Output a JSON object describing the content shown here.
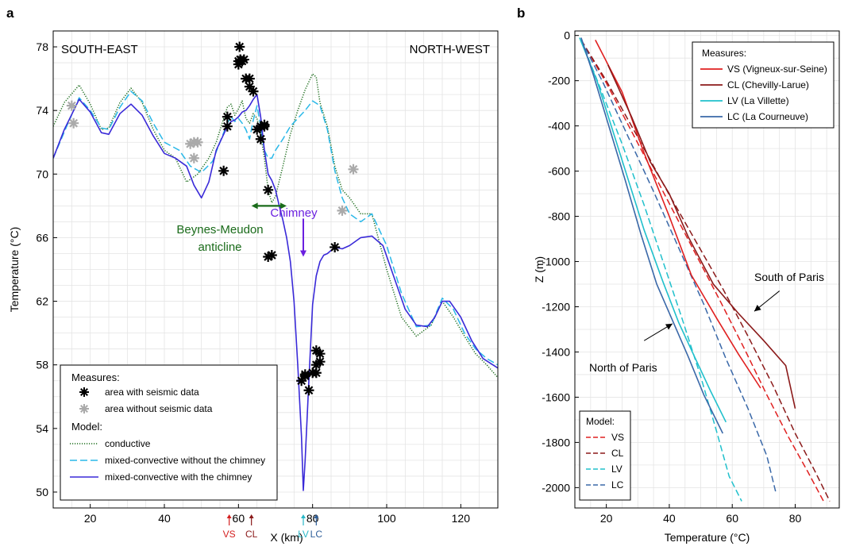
{
  "chart_data": [
    {
      "panel_label": "a",
      "type": "line",
      "xlabel": "X (km)",
      "ylabel": "Temperature (°C)",
      "xlim": [
        10,
        130
      ],
      "ylim": [
        49,
        79
      ],
      "xticks": [
        20,
        40,
        60,
        80,
        100,
        120
      ],
      "yticks": [
        50,
        54,
        58,
        62,
        66,
        70,
        74,
        78
      ],
      "grid": true,
      "corner_labels": {
        "left": "SOUTH-EAST",
        "right": "NORTH-WEST"
      },
      "annotations": {
        "anticline": {
          "text_line1": "Beynes-Meudon",
          "text_line2": "anticline",
          "arrow_x": [
            63.5,
            73
          ],
          "arrow_y": 68,
          "color": "#1a6b1a"
        },
        "chimney": {
          "text": "Chimney",
          "arrow_x": 77.5,
          "arrow_y": [
            67.2,
            64.8
          ],
          "color": "#6a1fe0"
        }
      },
      "well_markers": [
        {
          "text": "VS",
          "x": 57.5,
          "color": "#d42020"
        },
        {
          "text": "CL",
          "x": 63.5,
          "color": "#8b1a1a"
        },
        {
          "text": "LV",
          "x": 77.5,
          "color": "#2ab8c8"
        },
        {
          "text": "LC",
          "x": 81,
          "color": "#2f5f9a"
        }
      ],
      "legend": {
        "position": "bottom-left",
        "measures_title": "Measures:",
        "model_title": "Model:",
        "entries": [
          {
            "key": "seismic",
            "label": "area with seismic data"
          },
          {
            "key": "noseismic",
            "label": "area without seismic data"
          },
          {
            "key": "conductive",
            "label": "conductive"
          },
          {
            "key": "mixed_no_chimney",
            "label": "mixed-convective without the chimney"
          },
          {
            "key": "mixed_chimney",
            "label": "mixed-convective with the chimney"
          }
        ]
      },
      "series": [
        {
          "key": "conductive",
          "color": "#1a6b1a",
          "style": "dotted",
          "x": [
            10,
            13,
            17,
            20,
            23,
            25,
            28,
            31,
            34,
            37,
            40,
            43,
            46,
            49,
            52,
            54,
            56,
            57,
            58,
            59,
            60,
            61,
            62,
            63,
            64,
            65,
            66,
            67,
            68,
            69,
            70,
            72,
            74,
            76,
            78,
            80,
            81,
            82,
            84,
            86,
            88,
            90,
            93,
            96,
            100,
            104,
            108,
            112,
            115,
            118,
            121,
            124,
            127,
            130
          ],
          "y": [
            73,
            74.5,
            75.6,
            74.4,
            72.8,
            72.9,
            74.5,
            75.4,
            74.5,
            72.8,
            71.5,
            71,
            69.5,
            70,
            71,
            72,
            73.5,
            74.2,
            74.4,
            73.7,
            74.1,
            74.6,
            73.5,
            73.2,
            73.8,
            73.5,
            72.5,
            71,
            69,
            68.2,
            68.6,
            70.5,
            72.5,
            74,
            75.3,
            76.3,
            76.1,
            74.5,
            73,
            70.5,
            69,
            68.5,
            67.5,
            67.5,
            64,
            61,
            59.8,
            60.5,
            62,
            61,
            59.8,
            58.7,
            58,
            57.2
          ]
        },
        {
          "key": "mixed_no_chimney",
          "color": "#2ab8e8",
          "style": "dashed",
          "x": [
            10,
            14,
            17,
            20,
            23,
            25,
            28,
            31,
            34,
            37,
            40,
            44,
            47,
            50,
            53,
            55,
            57,
            58,
            59,
            60,
            61,
            62,
            63,
            64,
            65,
            66,
            67,
            68,
            69,
            70,
            72,
            74,
            76,
            78,
            80,
            82,
            84,
            86,
            88,
            90,
            93,
            96,
            100,
            104,
            108,
            112,
            115,
            118,
            121,
            124,
            127,
            130
          ],
          "y": [
            71,
            73.2,
            74.8,
            74,
            72.9,
            72.8,
            74.2,
            75.2,
            74.6,
            73.2,
            72,
            71.5,
            70.5,
            70.1,
            70.8,
            72,
            73.2,
            73.6,
            73.3,
            73.5,
            73.2,
            72.8,
            72.2,
            73.4,
            74.3,
            73,
            71.5,
            71,
            71,
            71.5,
            72.2,
            73,
            73.5,
            74,
            74.6,
            74.3,
            72.8,
            70.2,
            68.5,
            67.5,
            67,
            67.5,
            65.5,
            62.5,
            60.4,
            60.5,
            62.2,
            61.5,
            60,
            59,
            58.4,
            58
          ]
        },
        {
          "key": "mixed_chimney",
          "color": "#3a2ad8",
          "style": "solid",
          "x": [
            10,
            13,
            17,
            20,
            23,
            25,
            28,
            31,
            34,
            37,
            40,
            43,
            46,
            48,
            50,
            52,
            54,
            56,
            57,
            58,
            59,
            60,
            61,
            62,
            63,
            64,
            65,
            66,
            67,
            68,
            69,
            70,
            71,
            72,
            73,
            74,
            75,
            76,
            77,
            77.5,
            78,
            79,
            80,
            81,
            82,
            83,
            84,
            86,
            88,
            90,
            93,
            96,
            99,
            102,
            105,
            108,
            111,
            113,
            115,
            117,
            120,
            123,
            126,
            130
          ],
          "y": [
            71,
            72.8,
            74.7,
            73.9,
            72.6,
            72.5,
            73.8,
            74.4,
            73.7,
            72.4,
            71.3,
            71,
            70.5,
            69.3,
            68.5,
            69.5,
            71.5,
            72.5,
            73,
            73.3,
            73.4,
            73.6,
            73.9,
            74,
            74.3,
            74.7,
            75,
            73.6,
            71.5,
            70,
            69.6,
            69,
            68,
            67.1,
            66,
            64.5,
            62,
            58,
            53.5,
            50.1,
            52,
            57,
            61.8,
            63.6,
            64.5,
            64.9,
            65,
            65.4,
            65.3,
            65.5,
            66,
            66.1,
            65.5,
            63.5,
            61.5,
            60.5,
            60.4,
            61,
            62,
            62,
            61,
            59.5,
            58.4,
            57.8
          ]
        }
      ],
      "points": [
        {
          "key": "seismic",
          "x": [
            60,
            60.5,
            60,
            60.3,
            61,
            62,
            63,
            63,
            64,
            61.5,
            65,
            66,
            67,
            66,
            67,
            56,
            57,
            57,
            68,
            68,
            69,
            86,
            79,
            78,
            77,
            78,
            80,
            81,
            81,
            82,
            82,
            81
          ],
          "y": [
            77.1,
            77.2,
            76.9,
            78,
            77.1,
            76,
            76,
            75.5,
            75.2,
            77.2,
            72.8,
            73,
            73,
            72.2,
            73.1,
            70.2,
            73,
            73.6,
            69,
            64.8,
            64.9,
            65.4,
            56.4,
            57.3,
            57,
            57.4,
            57.5,
            57.5,
            58,
            58.2,
            58.7,
            58.9
          ]
        },
        {
          "key": "noseismic",
          "x": [
            15,
            15.5,
            47,
            48,
            49,
            48,
            91,
            88
          ],
          "y": [
            74.3,
            73.2,
            71.9,
            72,
            72,
            71,
            70.3,
            67.7
          ]
        }
      ]
    },
    {
      "panel_label": "b",
      "type": "line",
      "xlabel": "Temperature (°C)",
      "ylabel": "Z (m)",
      "xlim": [
        10,
        94
      ],
      "ylim": [
        -2090,
        20
      ],
      "xticks": [
        20,
        40,
        60,
        80
      ],
      "yticks": [
        0,
        -200,
        -400,
        -600,
        -800,
        -1000,
        -1200,
        -1400,
        -1600,
        -1800,
        -2000
      ],
      "grid": true,
      "annotations": {
        "south": {
          "text": "South of Paris",
          "arrow_from": [
            75,
            -1130
          ],
          "arrow_to": [
            67,
            -1220
          ]
        },
        "north": {
          "text": "North of Paris",
          "arrow_from": [
            32,
            -1350
          ],
          "arrow_to": [
            41,
            -1275
          ]
        }
      },
      "legend_measures": {
        "position": "top-right",
        "title": "Measures:",
        "entries": [
          {
            "key": "VS",
            "label": "VS (Vigneux-sur-Seine)",
            "color": "#e02020"
          },
          {
            "key": "CL",
            "label": "CL (Chevilly-Larue)",
            "color": "#8b1a1a"
          },
          {
            "key": "LV",
            "label": "LV (La Villette)",
            "color": "#20c0cc"
          },
          {
            "key": "LC",
            "label": "LC (La Courneuve)",
            "color": "#3a68a8"
          }
        ]
      },
      "legend_model": {
        "position": "bottom-left",
        "title": "Model:",
        "entries": [
          {
            "key": "VS",
            "label": "VS",
            "color": "#e02020"
          },
          {
            "key": "CL",
            "label": "CL",
            "color": "#8b1a1a"
          },
          {
            "key": "LV",
            "label": "LV",
            "color": "#20c0cc"
          },
          {
            "key": "LC",
            "label": "LC",
            "color": "#3a68a8"
          }
        ]
      },
      "measured": [
        {
          "key": "VS",
          "color": "#e02020",
          "x": [
            16.5,
            25,
            32,
            40,
            47,
            55,
            62,
            69
          ],
          "y": [
            -20,
            -250,
            -520,
            -800,
            -1060,
            -1250,
            -1410,
            -1560
          ]
        },
        {
          "key": "CL",
          "color": "#8b1a1a",
          "x": [
            20.5,
            28,
            34,
            40,
            46,
            54,
            62,
            70,
            77,
            80
          ],
          "y": [
            -130,
            -360,
            -560,
            -700,
            -890,
            -1100,
            -1230,
            -1350,
            -1460,
            -1650
          ]
        },
        {
          "key": "LV",
          "color": "#20c0cc",
          "x": [
            11.5,
            17,
            22,
            27,
            32,
            38,
            43,
            48,
            53,
            58
          ],
          "y": [
            -10,
            -200,
            -420,
            -640,
            -860,
            -1090,
            -1270,
            -1420,
            -1570,
            -1710
          ]
        },
        {
          "key": "LC",
          "color": "#3a68a8",
          "x": [
            12,
            16,
            21,
            26,
            31,
            36,
            41,
            46,
            51,
            57
          ],
          "y": [
            -10,
            -180,
            -410,
            -640,
            -880,
            -1100,
            -1260,
            -1420,
            -1590,
            -1760
          ]
        }
      ],
      "model": [
        {
          "key": "VS",
          "color": "#e02020",
          "x": [
            12,
            20,
            29,
            38,
            47,
            56,
            64,
            71,
            78,
            84,
            89
          ],
          "y": [
            -20,
            -210,
            -450,
            -690,
            -930,
            -1170,
            -1390,
            -1590,
            -1780,
            -1930,
            -2060
          ]
        },
        {
          "key": "CL",
          "color": "#8b1a1a",
          "x": [
            12,
            20,
            30,
            39,
            48,
            57,
            65,
            73,
            80,
            86,
            91
          ],
          "y": [
            -20,
            -200,
            -450,
            -680,
            -900,
            -1120,
            -1330,
            -1550,
            -1760,
            -1920,
            -2060
          ]
        },
        {
          "key": "LV",
          "color": "#20c0cc",
          "x": [
            12,
            18,
            25,
            32,
            38,
            44,
            50,
            55,
            59,
            63
          ],
          "y": [
            -20,
            -230,
            -480,
            -750,
            -1000,
            -1250,
            -1510,
            -1750,
            -1950,
            -2060
          ]
        },
        {
          "key": "LC",
          "color": "#3a68a8",
          "x": [
            12,
            19,
            27,
            35,
            43,
            51,
            58,
            65,
            71,
            74
          ],
          "y": [
            -20,
            -210,
            -450,
            -690,
            -940,
            -1190,
            -1430,
            -1650,
            -1860,
            -2030
          ]
        }
      ]
    }
  ]
}
